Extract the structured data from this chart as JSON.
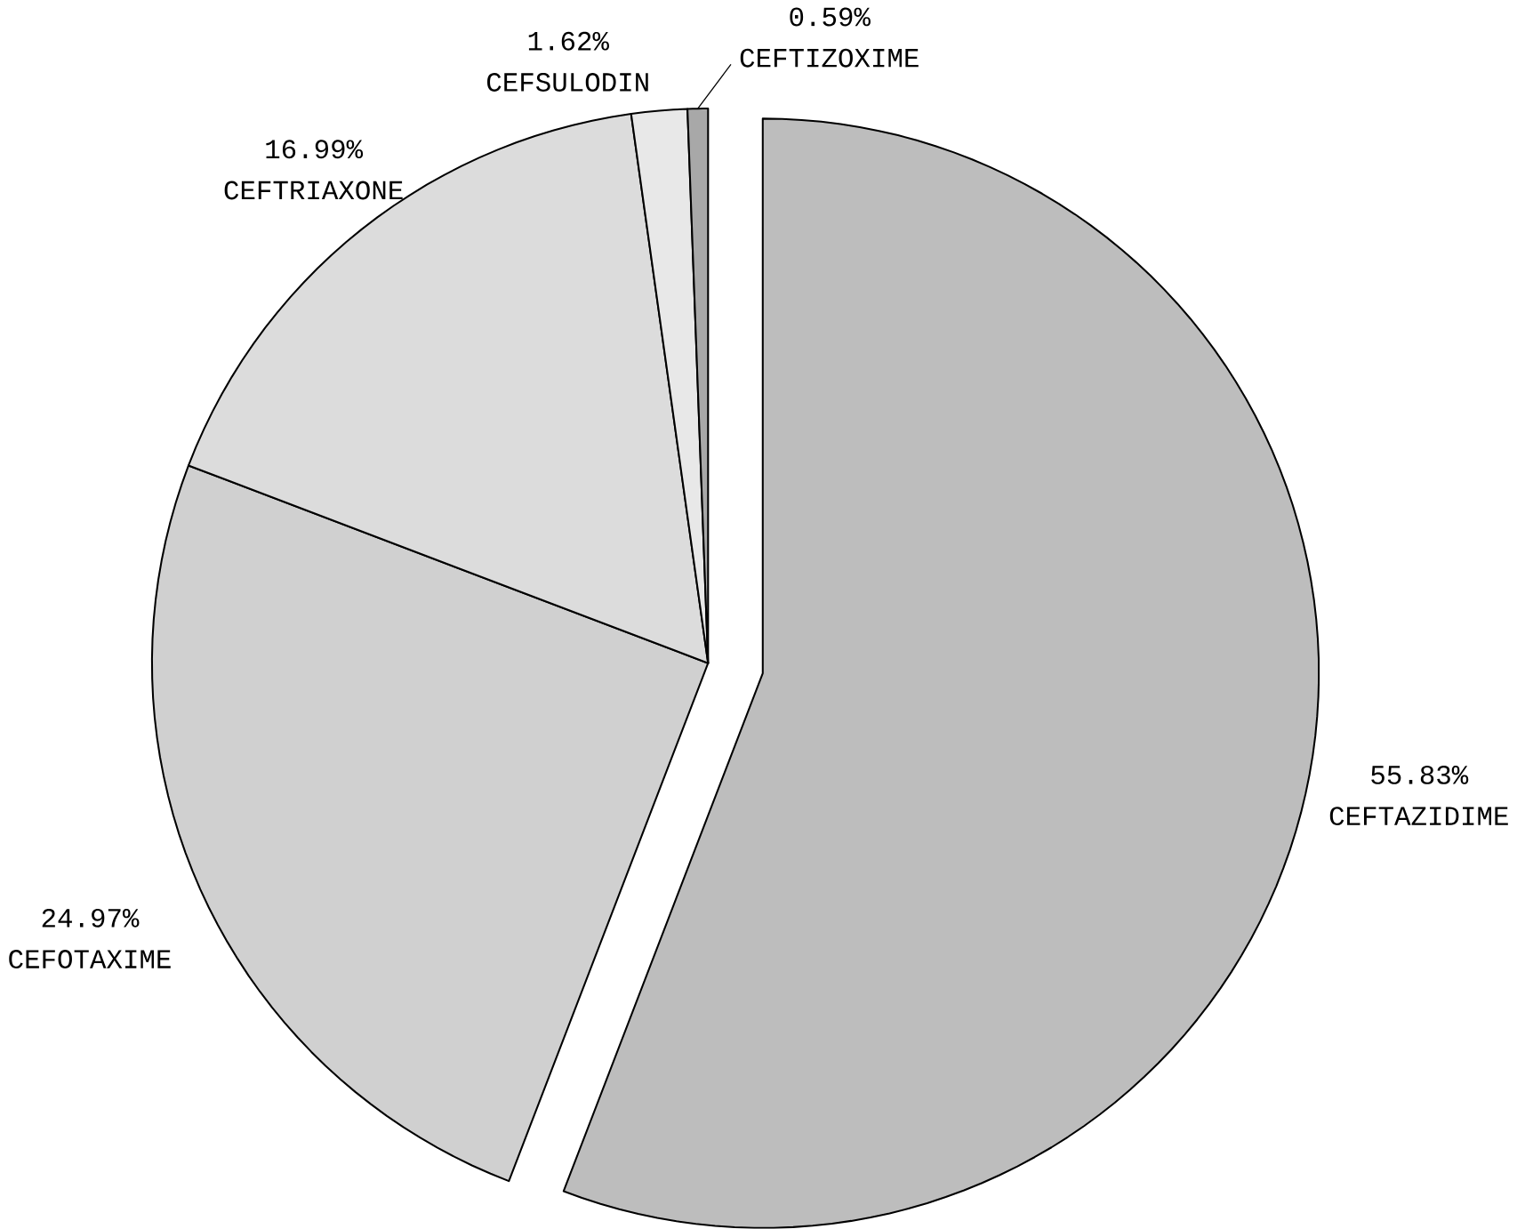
{
  "chart_data": {
    "type": "pie",
    "categories": [
      "CEFTAZIDIME",
      "CEFOTAXIME",
      "CEFTRIAXONE",
      "CEFSULODIN",
      "CEFTIZOXIME"
    ],
    "values": [
      55.83,
      24.97,
      16.99,
      1.62,
      0.59
    ],
    "value_labels": [
      "55.83%",
      "24.97%",
      "16.99%",
      "1.62%",
      "0.59%"
    ],
    "colors": [
      "#bdbdbd",
      "#d0d0d0",
      "#dcdcdc",
      "#e8e8e8",
      "#a8a8a8"
    ]
  }
}
